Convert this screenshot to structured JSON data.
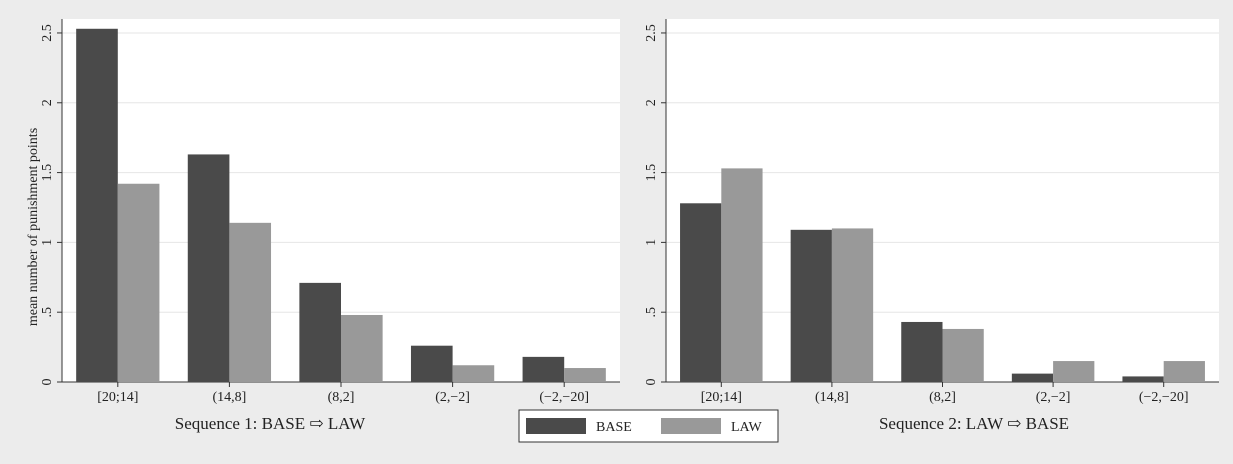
{
  "colors": {
    "background": "#ececec",
    "plot_area": "#ffffff",
    "grid": "#e6e6e6",
    "axis": "#333333",
    "base": "#4a4a4a",
    "law": "#999999"
  },
  "chart_data": [
    {
      "type": "bar",
      "title": "Sequence 1: BASE ⇨ LAW",
      "xlabel": "",
      "ylabel": "mean number of punishment points",
      "categories": [
        "[20;14]",
        "(14,8]",
        "(8,2]",
        "(2,−2]",
        "(−2,−20]"
      ],
      "series": [
        {
          "name": "BASE",
          "values": [
            2.53,
            1.63,
            0.71,
            0.26,
            0.18
          ]
        },
        {
          "name": "LAW",
          "values": [
            1.42,
            1.14,
            0.48,
            0.12,
            0.1
          ]
        }
      ],
      "ylim": [
        0,
        2.6
      ],
      "yticks": [
        0,
        0.5,
        1,
        1.5,
        2,
        2.5
      ],
      "ytick_labels": [
        "0",
        ".5",
        "1",
        "1.5",
        "2",
        "2.5"
      ],
      "grid": true
    },
    {
      "type": "bar",
      "title": "Sequence 2: LAW ⇨ BASE",
      "xlabel": "",
      "ylabel": "",
      "categories": [
        "[20;14]",
        "(14,8]",
        "(8,2]",
        "(2,−2]",
        "(−2,−20]"
      ],
      "series": [
        {
          "name": "BASE",
          "values": [
            1.28,
            1.09,
            0.43,
            0.06,
            0.04
          ]
        },
        {
          "name": "LAW",
          "values": [
            1.53,
            1.1,
            0.38,
            0.15,
            0.15
          ]
        }
      ],
      "ylim": [
        0,
        2.6
      ],
      "yticks": [
        0,
        0.5,
        1,
        1.5,
        2,
        2.5
      ],
      "ytick_labels": [
        "0",
        ".5",
        "1",
        "1.5",
        "2",
        "2.5"
      ],
      "grid": true
    }
  ],
  "legend": {
    "placement": "bottom-center",
    "items": [
      {
        "name": "BASE",
        "color_key": "base"
      },
      {
        "name": "LAW",
        "color_key": "law"
      }
    ]
  }
}
